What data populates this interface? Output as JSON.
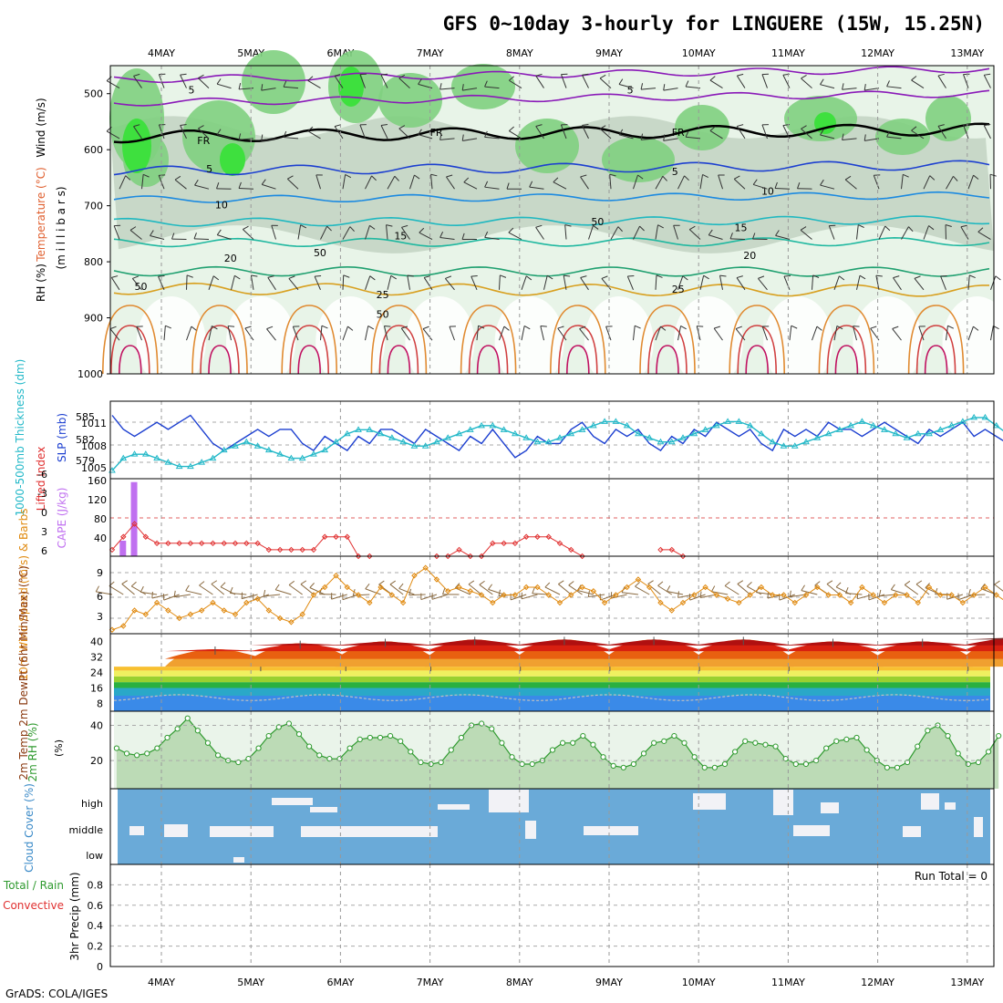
{
  "title": "GFS 0~10day 3-hourly for LINGUERE (15W, 15.25N)",
  "footer": "GrADS: COLA/IGES",
  "run_total_label": "Run Total = 0",
  "colors": {
    "rh_light": "#e8f4e8",
    "rh_mid": "#c8d8c8",
    "rh_green": "#7fd07f",
    "rh_bright": "#3ee03e",
    "slp": "#1c3fd0",
    "thickness": "#22b8c8",
    "lifted": "#e03030",
    "cape": "#c070f0",
    "wind10": "#e08a10",
    "rh2m": "#2f9a2f",
    "cloud": "#6aaad8",
    "cloud_gap": "#f2f2f6"
  },
  "chart_data": [
    {
      "id": "upper_air",
      "type": "heatmap",
      "ylabel_parts": [
        "Wind (m/s)",
        "Temperature (°C)",
        "RH (%)",
        "(m i l l i b a r s)"
      ],
      "x": [
        "4MAY",
        "5MAY",
        "6MAY",
        "7MAY",
        "8MAY",
        "9MAY",
        "10MAY",
        "11MAY",
        "12MAY",
        "13MAY"
      ],
      "ylim": [
        1000,
        450
      ],
      "yticks": [
        500,
        600,
        700,
        800,
        900,
        1000
      ],
      "isotherm_labels": [
        {
          "value": "5",
          "level": 500,
          "day": 0.3
        },
        {
          "value": "5",
          "level": 500,
          "day": 5.2
        },
        {
          "value": "FR",
          "level": 590,
          "day": 0.4
        },
        {
          "value": "FR",
          "level": 575,
          "day": 3.0
        },
        {
          "value": "FR",
          "level": 575,
          "day": 5.7
        },
        {
          "value": "5",
          "level": 640,
          "day": 0.5
        },
        {
          "value": "5",
          "level": 645,
          "day": 5.7
        },
        {
          "value": "10",
          "level": 705,
          "day": 0.6
        },
        {
          "value": "10",
          "level": 680,
          "day": 6.7
        },
        {
          "value": "15",
          "level": 760,
          "day": 2.6
        },
        {
          "value": "15",
          "level": 745,
          "day": 6.4
        },
        {
          "value": "20",
          "level": 800,
          "day": 0.7
        },
        {
          "value": "20",
          "level": 795,
          "day": 6.5
        },
        {
          "value": "25",
          "level": 865,
          "day": 2.4
        },
        {
          "value": "25",
          "level": 855,
          "day": 5.7
        }
      ],
      "rh_labels": [
        {
          "value": "50",
          "level": 735,
          "day": 4.8
        },
        {
          "value": "50",
          "level": 850,
          "day": -0.3
        },
        {
          "value": "50",
          "level": 900,
          "day": 2.4
        },
        {
          "value": "50",
          "level": 790,
          "day": 1.7
        }
      ]
    },
    {
      "id": "slp_thickness",
      "type": "line",
      "ylabel_left": "1000-500mb Thickness (dm)",
      "ylabel_right": "SLP (mb)",
      "left_ticks": [
        "585",
        "582",
        "579"
      ],
      "right_ticks": [
        "1011",
        "1008",
        "1005"
      ],
      "series": [
        {
          "name": "SLP (mb)",
          "ylim": [
            1003,
            1014
          ],
          "values": [
            1012,
            1010,
            1009,
            1010,
            1011,
            1010,
            1011,
            1012,
            1010,
            1008,
            1007,
            1008,
            1009,
            1010,
            1009,
            1010,
            1010,
            1008,
            1007,
            1009,
            1008,
            1007,
            1009,
            1008,
            1010,
            1010,
            1009,
            1008,
            1010,
            1009,
            1008,
            1007,
            1009,
            1008,
            1010,
            1008,
            1006,
            1007,
            1009,
            1008,
            1008,
            1010,
            1011,
            1009,
            1008,
            1010,
            1009,
            1010,
            1008,
            1007,
            1009,
            1008,
            1010,
            1009,
            1011,
            1010,
            1009,
            1010,
            1008,
            1007,
            1010,
            1009,
            1010,
            1009,
            1011,
            1010,
            1010,
            1009,
            1010,
            1011,
            1010,
            1009,
            1008,
            1010,
            1009,
            1010,
            1011,
            1009,
            1010,
            1009,
            1008,
            1009
          ]
        },
        {
          "name": "1000-500mb Thickness (dm)",
          "ylim": [
            577.5,
            587
          ],
          "values": [
            578.5,
            580,
            580.5,
            580.5,
            580,
            579.5,
            579,
            579,
            579.5,
            580,
            581,
            581.5,
            582,
            581.5,
            581,
            580.5,
            580,
            580,
            580.5,
            581,
            582,
            583,
            583.5,
            583.5,
            583,
            582.5,
            582,
            581.5,
            581.5,
            582,
            582.5,
            583,
            583.5,
            584,
            584,
            583.5,
            583,
            582.5,
            582,
            582,
            582.5,
            583,
            583.5,
            584,
            584.5,
            584.5,
            584,
            583,
            582.5,
            582,
            582,
            582.5,
            583,
            583.5,
            584,
            584.5,
            584.5,
            584,
            583,
            582,
            581.5,
            581.5,
            582,
            582.5,
            583,
            583.5,
            584,
            584.5,
            584,
            583.5,
            583,
            582.5,
            583,
            583,
            583.5,
            584,
            584.5,
            585,
            585,
            584,
            583,
            582.5
          ]
        }
      ]
    },
    {
      "id": "lifted_cape",
      "type": "bar",
      "ylabel_left": "Lifted Index",
      "ylabel_right": "CAPE (J/kg)",
      "left_ticks": [
        "6",
        "3",
        "0",
        "-3",
        "-6"
      ],
      "right_ticks": [
        "40",
        "80",
        "120",
        "160"
      ],
      "cape_ylim": [
        0,
        160
      ],
      "cape_values": [
        {
          "step": 1,
          "value": 32
        },
        {
          "step": 2,
          "value": 153
        }
      ],
      "lifted_ylim": [
        6,
        -6
      ],
      "lifted_values": [
        5,
        3,
        1,
        3,
        4,
        4,
        4,
        4,
        4,
        4,
        4,
        4,
        4,
        4,
        5,
        5,
        5,
        5,
        5,
        3,
        3,
        3,
        6,
        6,
        7,
        8,
        8,
        8,
        7,
        6,
        6,
        5,
        6,
        6,
        4,
        4,
        4,
        3,
        3,
        3,
        4,
        5,
        6,
        7,
        8,
        8,
        9,
        9,
        8,
        5,
        5,
        6,
        7,
        8,
        9,
        9,
        10,
        10,
        9,
        9,
        8,
        7,
        8,
        9,
        9,
        10,
        10,
        9,
        10,
        9,
        8,
        8,
        7,
        8,
        7,
        9,
        8,
        7,
        9,
        7,
        6,
        9
      ]
    },
    {
      "id": "wind10m",
      "type": "line",
      "ylabel": "10m Wind Speed (m/s) & Barbs",
      "yticks": [
        "3",
        "6",
        "9"
      ],
      "ylim": [
        1,
        11
      ],
      "values": [
        1.5,
        2,
        4,
        3.5,
        5,
        4,
        3,
        3.5,
        4,
        5,
        4,
        3.5,
        5,
        5.5,
        4,
        3,
        2.5,
        3.5,
        6,
        7,
        8.5,
        7,
        6,
        5,
        7,
        6,
        5,
        8.5,
        9.5,
        8,
        6.5,
        7,
        6.5,
        6,
        5,
        6,
        6,
        7,
        7,
        6,
        5,
        6,
        7,
        6.5,
        5,
        6,
        7,
        8,
        7,
        5,
        4,
        5,
        6,
        7,
        6,
        5.5,
        5,
        6,
        7,
        6,
        6,
        5,
        6,
        7,
        6,
        6,
        5,
        7,
        6,
        5,
        6,
        6,
        5,
        7,
        6,
        6,
        5,
        6,
        7,
        6,
        5,
        5
      ]
    },
    {
      "id": "temp2m",
      "type": "area",
      "ylabel": "2m Temp 2m DewPt (6hr Min/Max) (°C)",
      "yticks": [
        "8",
        "16",
        "24",
        "32",
        "40"
      ],
      "ylim": [
        4,
        44
      ],
      "temp_max_days": [
        0.6,
        1.55,
        2.5,
        3.5,
        4.5,
        5.5,
        6.5,
        7.5,
        8.5,
        9.5
      ],
      "temp_max_values": [
        36,
        39,
        40,
        41,
        41,
        41,
        41,
        40,
        40,
        42
      ],
      "temp_min_value": 27
    },
    {
      "id": "rh2m",
      "type": "area",
      "ylabel": "2m RH (%)",
      "yticks": [
        "20",
        "40"
      ],
      "ylim": [
        4,
        48
      ],
      "values": [
        27,
        24,
        23,
        24,
        27,
        33,
        38,
        44,
        37,
        30,
        23,
        20,
        19,
        21,
        27,
        34,
        39,
        41,
        35,
        28,
        23,
        21,
        21,
        27,
        32,
        33,
        33,
        34,
        31,
        25,
        19,
        18,
        19,
        26,
        33,
        40,
        41,
        38,
        30,
        22,
        18,
        18,
        20,
        26,
        30,
        30,
        34,
        29,
        22,
        17,
        16,
        18,
        24,
        30,
        31,
        34,
        30,
        22,
        16,
        16,
        18,
        25,
        31,
        30,
        29,
        28,
        21,
        18,
        18,
        20,
        27,
        31,
        32,
        33,
        26,
        20,
        16,
        16,
        19,
        28,
        37,
        40,
        34,
        24,
        18,
        19,
        25,
        34
      ]
    },
    {
      "id": "cloud_cover",
      "type": "heatmap",
      "ylabel": "Cloud Cover (%)",
      "levels": [
        "high",
        "middle",
        "low"
      ]
    },
    {
      "id": "precip",
      "type": "bar",
      "ylabel_left": "Total / Rain",
      "ylabel_left2": "Convective",
      "ylabel": "3hr Precip (mm)",
      "yticks": [
        "0",
        "0.2",
        "0.4",
        "0.6",
        "0.8"
      ],
      "ylim": [
        0,
        1
      ],
      "values": []
    }
  ]
}
